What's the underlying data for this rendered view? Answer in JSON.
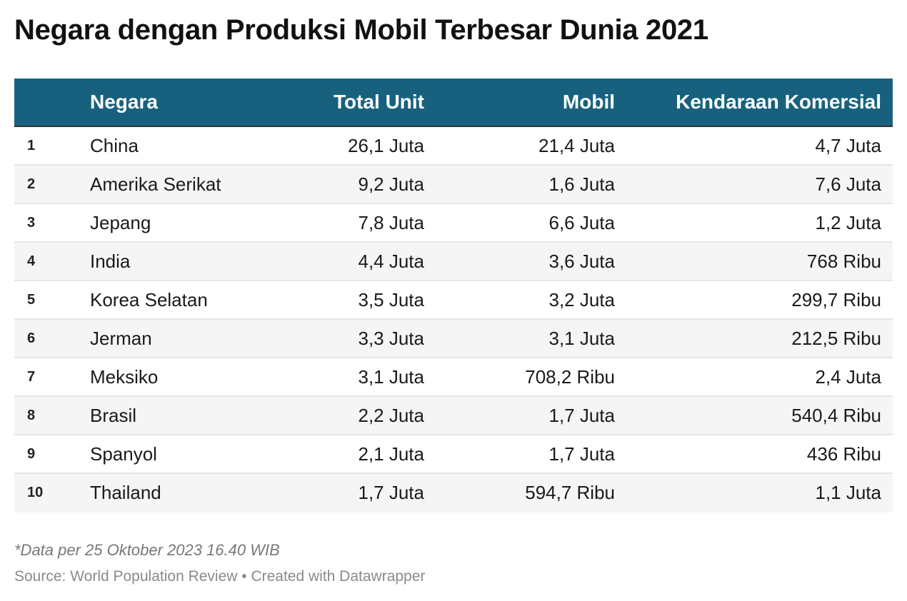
{
  "title": "Negara dengan Produksi Mobil Terbesar Dunia 2021",
  "chart_data": {
    "type": "table",
    "columns": [
      "",
      "Negara",
      "Total Unit",
      "Mobil",
      "Kendaraan Komersial"
    ],
    "rows": [
      {
        "rank": "1",
        "country": "China",
        "total": "26,1 Juta",
        "mobil": "21,4 Juta",
        "komersial": "4,7 Juta"
      },
      {
        "rank": "2",
        "country": "Amerika Serikat",
        "total": "9,2 Juta",
        "mobil": "1,6 Juta",
        "komersial": "7,6 Juta"
      },
      {
        "rank": "3",
        "country": "Jepang",
        "total": "7,8 Juta",
        "mobil": "6,6 Juta",
        "komersial": "1,2 Juta"
      },
      {
        "rank": "4",
        "country": "India",
        "total": "4,4 Juta",
        "mobil": "3,6 Juta",
        "komersial": "768 Ribu"
      },
      {
        "rank": "5",
        "country": "Korea Selatan",
        "total": "3,5 Juta",
        "mobil": "3,2 Juta",
        "komersial": "299,7 Ribu"
      },
      {
        "rank": "6",
        "country": "Jerman",
        "total": "3,3 Juta",
        "mobil": "3,1 Juta",
        "komersial": "212,5 Ribu"
      },
      {
        "rank": "7",
        "country": "Meksiko",
        "total": "3,1 Juta",
        "mobil": "708,2 Ribu",
        "komersial": "2,4 Juta"
      },
      {
        "rank": "8",
        "country": "Brasil",
        "total": "2,2 Juta",
        "mobil": "1,7 Juta",
        "komersial": "540,4 Ribu"
      },
      {
        "rank": "9",
        "country": "Spanyol",
        "total": "2,1 Juta",
        "mobil": "1,7 Juta",
        "komersial": "436 Ribu"
      },
      {
        "rank": "10",
        "country": "Thailand",
        "total": "1,7 Juta",
        "mobil": "594,7 Ribu",
        "komersial": "1,1 Juta"
      }
    ]
  },
  "notes": "*Data per 25 Oktober 2023 16.40 WIB",
  "source": "Source: World Population Review • Created with Datawrapper",
  "colors": {
    "header_bg": "#18617e",
    "header_text": "#ffffff",
    "row_alt_bg": "#f5f5f5",
    "row_border": "#e6e6e6"
  }
}
